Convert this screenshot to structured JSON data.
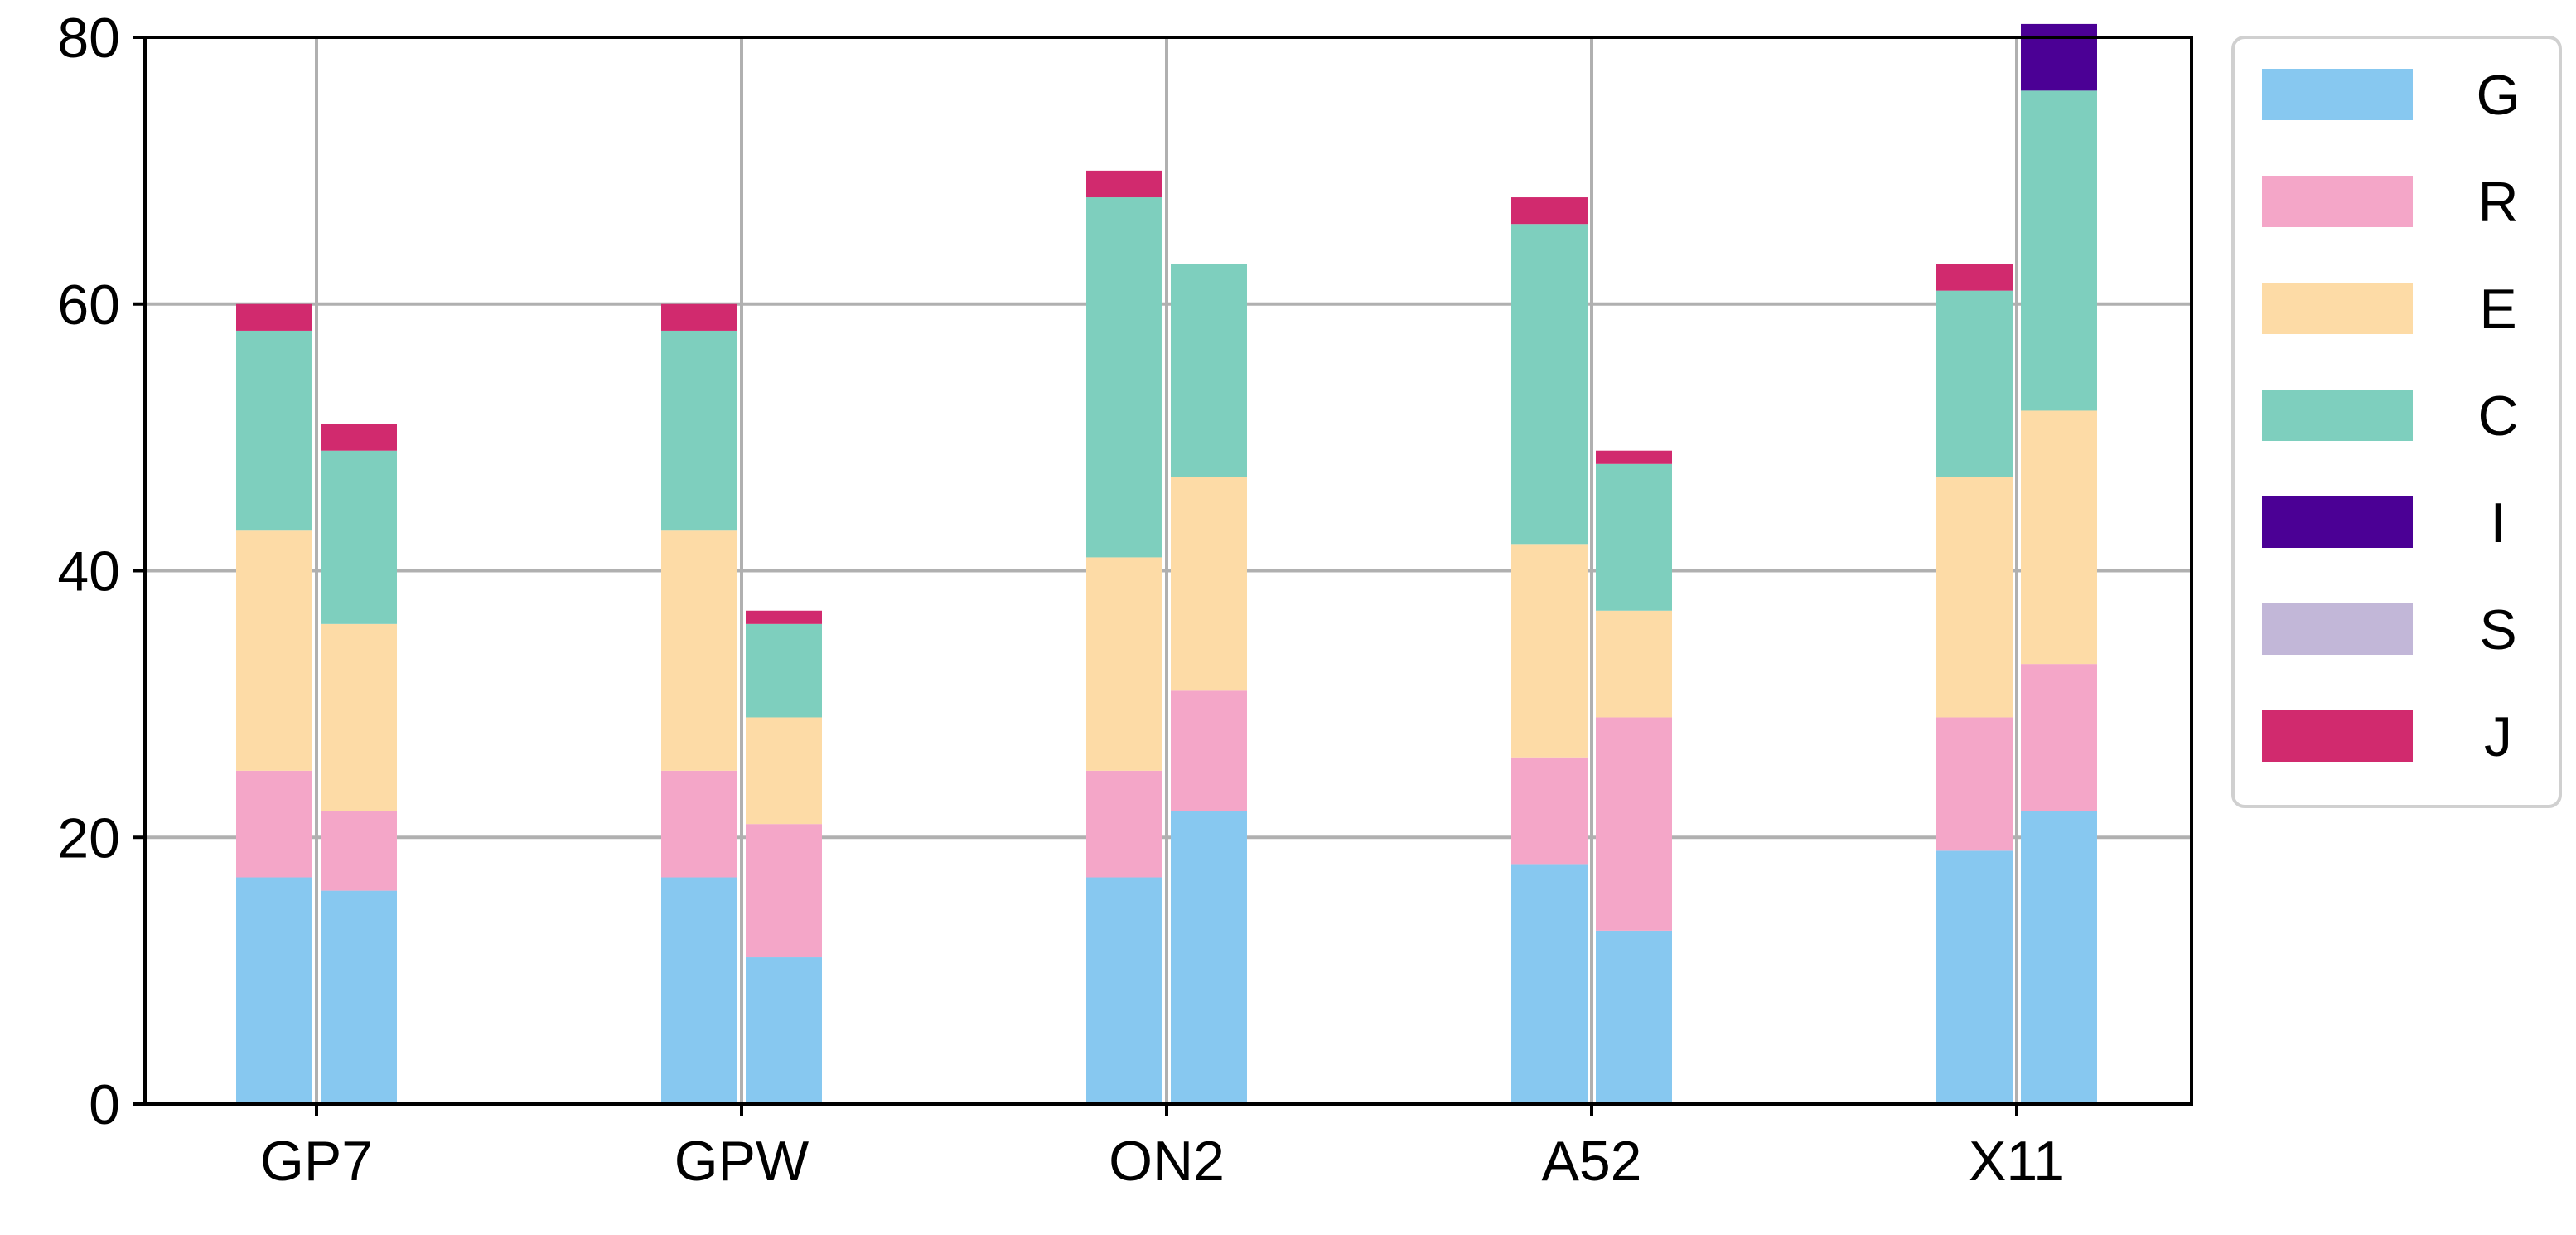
{
  "chart_data": {
    "type": "bar",
    "stacked": true,
    "title": "",
    "xlabel": "",
    "ylabel": "",
    "ylim": [
      0,
      80
    ],
    "yticks": [
      0,
      20,
      40,
      60,
      80
    ],
    "grid": true,
    "legend_position": "outside-right",
    "categories": [
      "GP7",
      "GPW",
      "ON2",
      "A52",
      "X11"
    ],
    "bars_per_category": 2,
    "layers": [
      "G",
      "R",
      "E",
      "C",
      "I",
      "S",
      "J"
    ],
    "colors": {
      "G": "#87c8f0",
      "R": "#f4a6c8",
      "E": "#fddba6",
      "C": "#7ecfbe",
      "I": "#4b0095",
      "S": "#c2b7d8",
      "J": "#d12a6e"
    },
    "series": [
      {
        "category": "GP7",
        "bar": 1,
        "segments": {
          "G": 17,
          "R": 8,
          "E": 18,
          "C": 15,
          "I": 0,
          "S": 0,
          "J": 2
        }
      },
      {
        "category": "GP7",
        "bar": 2,
        "segments": {
          "G": 16,
          "R": 6,
          "E": 14,
          "C": 13,
          "I": 0,
          "S": 0,
          "J": 2
        }
      },
      {
        "category": "GPW",
        "bar": 1,
        "segments": {
          "G": 17,
          "R": 8,
          "E": 18,
          "C": 15,
          "I": 0,
          "S": 0,
          "J": 2
        }
      },
      {
        "category": "GPW",
        "bar": 2,
        "segments": {
          "G": 11,
          "R": 10,
          "E": 8,
          "C": 7,
          "I": 0,
          "S": 0,
          "J": 1
        }
      },
      {
        "category": "ON2",
        "bar": 1,
        "segments": {
          "G": 17,
          "R": 8,
          "E": 16,
          "C": 27,
          "I": 0,
          "S": 0,
          "J": 2
        }
      },
      {
        "category": "ON2",
        "bar": 2,
        "segments": {
          "G": 22,
          "R": 9,
          "E": 16,
          "C": 16,
          "I": 0,
          "S": 0,
          "J": 0
        }
      },
      {
        "category": "A52",
        "bar": 1,
        "segments": {
          "G": 18,
          "R": 8,
          "E": 16,
          "C": 24,
          "I": 0,
          "S": 0,
          "J": 2
        }
      },
      {
        "category": "A52",
        "bar": 2,
        "segments": {
          "G": 13,
          "R": 16,
          "E": 8,
          "C": 11,
          "I": 0,
          "S": 0,
          "J": 1
        }
      },
      {
        "category": "X11",
        "bar": 1,
        "segments": {
          "G": 19,
          "R": 10,
          "E": 18,
          "C": 14,
          "I": 0,
          "S": 0,
          "J": 2
        }
      },
      {
        "category": "X11",
        "bar": 2,
        "segments": {
          "G": 22,
          "R": 11,
          "E": 19,
          "C": 24,
          "I": 5,
          "S": 0,
          "J": 0
        }
      }
    ]
  }
}
